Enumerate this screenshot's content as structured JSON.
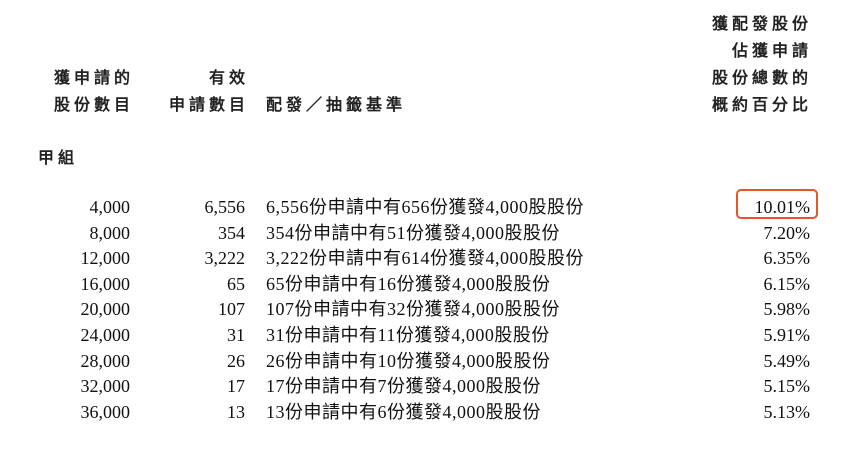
{
  "headers": {
    "applied_shares": [
      "獲申請的",
      "股份數目"
    ],
    "valid_applications": [
      "有效",
      "申請數目"
    ],
    "basis": "配發／抽籤基準",
    "percentage": [
      "獲配發股份",
      "佔獲申請",
      "股份總數的",
      "概約百分比"
    ]
  },
  "section_label": "甲組",
  "rows": [
    {
      "shares": "4,000",
      "applications": "6,556",
      "basis": "6,556份申請中有656份獲發4,000股股份",
      "pct": "10.01%"
    },
    {
      "shares": "8,000",
      "applications": "354",
      "basis": "354份申請中有51份獲發4,000股股份",
      "pct": "7.20%"
    },
    {
      "shares": "12,000",
      "applications": "3,222",
      "basis": "3,222份申請中有614份獲發4,000股股份",
      "pct": "6.35%"
    },
    {
      "shares": "16,000",
      "applications": "65",
      "basis": "65份申請中有16份獲發4,000股股份",
      "pct": "6.15%"
    },
    {
      "shares": "20,000",
      "applications": "107",
      "basis": "107份申請中有32份獲發4,000股股份",
      "pct": "5.98%"
    },
    {
      "shares": "24,000",
      "applications": "31",
      "basis": "31份申請中有11份獲發4,000股股份",
      "pct": "5.91%"
    },
    {
      "shares": "28,000",
      "applications": "26",
      "basis": "26份申請中有10份獲發4,000股股份",
      "pct": "5.49%"
    },
    {
      "shares": "32,000",
      "applications": "17",
      "basis": "17份申請中有7份獲發4,000股股份",
      "pct": "5.15%"
    },
    {
      "shares": "36,000",
      "applications": "13",
      "basis": "13份申請中有6份獲發4,000股股份",
      "pct": "5.13%"
    }
  ],
  "highlight_color": "#e8542a"
}
